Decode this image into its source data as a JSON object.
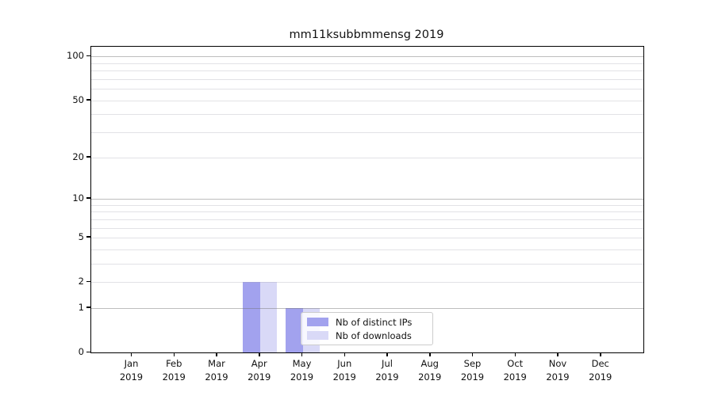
{
  "chart_data": {
    "type": "bar",
    "title": "mm11ksubbmmensg 2019",
    "year_label": "2019",
    "categories": [
      "Jan",
      "Feb",
      "Mar",
      "Apr",
      "May",
      "Jun",
      "Jul",
      "Aug",
      "Sep",
      "Oct",
      "Nov",
      "Dec"
    ],
    "series": [
      {
        "name": "Nb of distinct IPs",
        "color": "#a2a2ee",
        "values": [
          0,
          0,
          0,
          2,
          1,
          0,
          0,
          0,
          0,
          0,
          0,
          0
        ]
      },
      {
        "name": "Nb of downloads",
        "color": "#d9d9f7",
        "values": [
          0,
          0,
          0,
          2,
          1,
          0,
          0,
          0,
          0,
          0,
          0,
          0
        ]
      }
    ],
    "y_scale": "log1p",
    "y_ticks": [
      0,
      1,
      2,
      5,
      10,
      20,
      50,
      100
    ],
    "major_grid_values": [
      1,
      10,
      100
    ],
    "minor_grid_values": [
      2,
      3,
      4,
      5,
      6,
      7,
      8,
      9,
      20,
      30,
      40,
      50,
      60,
      70,
      80,
      90
    ],
    "ylim": [
      0,
      116
    ],
    "grid": "on",
    "legend_position": "lower center",
    "colors": {
      "background": "#ffffff",
      "axis": "#000000",
      "text": "#111111",
      "major_grid": "#c2c2c2",
      "minor_grid": "#e9e9ee"
    }
  }
}
